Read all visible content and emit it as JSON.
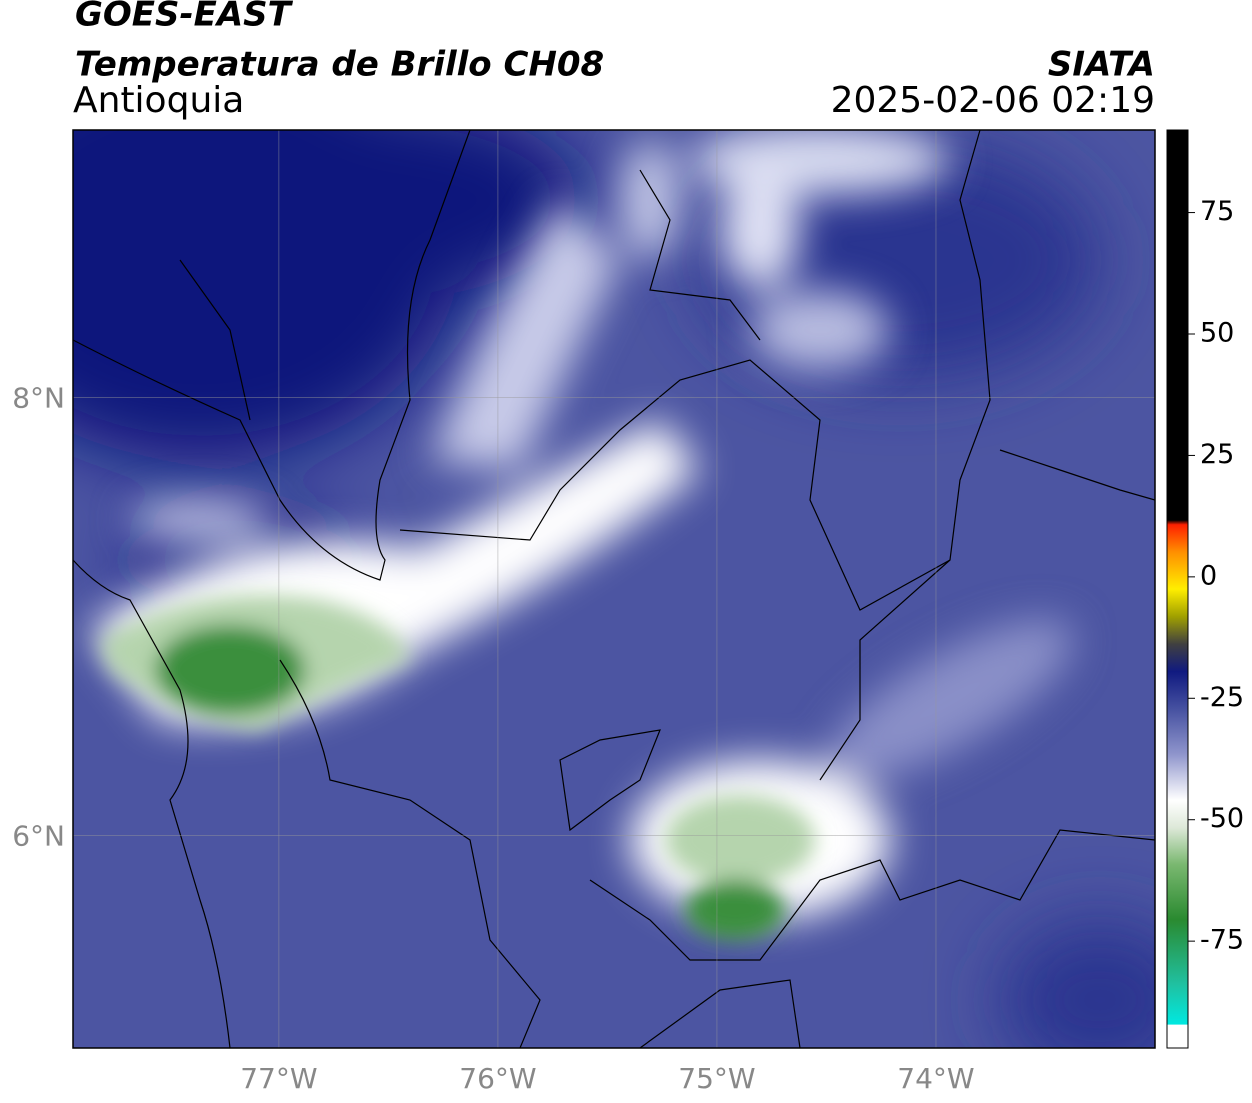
{
  "header": {
    "title": "GOES-EAST",
    "subtitle": "Temperatura de Brillo CH08",
    "region": "Antioquia",
    "source": "SIATA",
    "datetime": "2025-02-06 02:19"
  },
  "map": {
    "lon_lim": [
      -77.94,
      -73.0
    ],
    "lat_lim": [
      5.03,
      9.22
    ],
    "lon_ticks": [
      {
        "value": -77,
        "label": "77°W"
      },
      {
        "value": -76,
        "label": "76°W"
      },
      {
        "value": -75,
        "label": "75°W"
      },
      {
        "value": -74,
        "label": "74°W"
      }
    ],
    "lat_ticks": [
      {
        "value": 8,
        "label": "8°N"
      },
      {
        "value": 6,
        "label": "6°N"
      }
    ]
  },
  "colorbar": {
    "lim": [
      -97,
      92
    ],
    "ticks": [
      75,
      50,
      25,
      0,
      -25,
      -50,
      -75
    ]
  }
}
